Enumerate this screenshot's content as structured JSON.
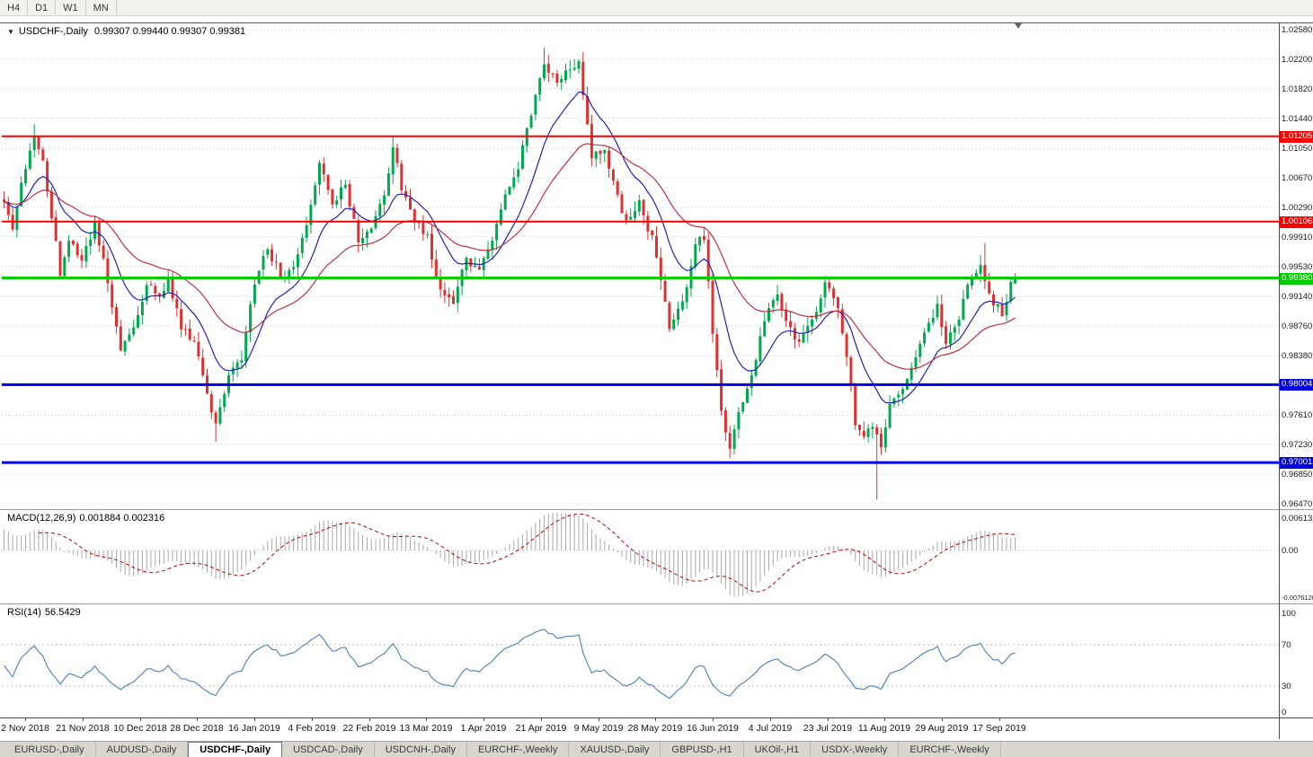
{
  "toolbar": {
    "buttons": [
      "H4",
      "D1",
      "W1",
      "MN"
    ]
  },
  "chart": {
    "title_symbol": "USDCHF-,Daily",
    "title_ohlc": "0.99307 0.99440 0.99307 0.99381"
  },
  "price_axis": {
    "labels": [
      "1.02580",
      "1.02200",
      "1.01820",
      "1.01440",
      "1.01050",
      "1.00670",
      "1.00290",
      "0.99910",
      "0.99530",
      "0.99140",
      "0.98760",
      "0.98380",
      "0.97610",
      "0.97230",
      "0.96850",
      "0.96470"
    ],
    "badges": [
      {
        "text": "1.01205",
        "value": 1.01205,
        "color": "#FF0000"
      },
      {
        "text": "1.00106",
        "value": 1.00106,
        "color": "#FF0000"
      },
      {
        "text": "0.99380",
        "value": 0.9938,
        "color": "#00CC00"
      },
      {
        "text": "0.98004",
        "value": 0.98004,
        "color": "#0000E0"
      },
      {
        "text": "0.97001",
        "value": 0.97001,
        "color": "#0000E0"
      }
    ]
  },
  "macd": {
    "label": "MACD(12,26,9)",
    "values": "0.001884 0.002316",
    "axis_top": "0.00613",
    "axis_zero": "0.00",
    "axis_bottom": "-0.0076128"
  },
  "rsi": {
    "label": "RSI(14)",
    "value": "56.5429",
    "axis": [
      "100",
      "70",
      "30",
      "0"
    ],
    "level_lines": [
      70,
      30
    ]
  },
  "dates": [
    "2 Nov 2018",
    "21 Nov 2018",
    "10 Dec 2018",
    "28 Dec 2018",
    "16 Jan 2019",
    "4 Feb 2019",
    "22 Feb 2019",
    "13 Mar 2019",
    "1 Apr 2019",
    "21 Apr 2019",
    "9 May 2019",
    "28 May 2019",
    "16 Jun 2019",
    "4 Jul 2019",
    "23 Jul 2019",
    "11 Aug 2019",
    "29 Aug 2019",
    "17 Sep 2019"
  ],
  "tabs": [
    {
      "label": "EURUSD-,Daily",
      "active": false
    },
    {
      "label": "AUDUSD-,Daily",
      "active": false
    },
    {
      "label": "USDCHF-,Daily",
      "active": true
    },
    {
      "label": "USDCAD-,Daily",
      "active": false
    },
    {
      "label": "USDCNH-,Daily",
      "active": false
    },
    {
      "label": "EURCHF-,Weekly",
      "active": false
    },
    {
      "label": "XAUUSD-,Daily",
      "active": false
    },
    {
      "label": "GBPUSD-,H1",
      "active": false
    },
    {
      "label": "UKOil-,H1",
      "active": false
    },
    {
      "label": "USDX-,Weekly",
      "active": false
    },
    {
      "label": "EURCHF-,Weekly",
      "active": false
    }
  ],
  "chart_data": {
    "type": "candlestick",
    "symbol": "USDCHF",
    "timeframe": "Daily",
    "last_candle": {
      "open": 0.99307,
      "high": 0.9944,
      "low": 0.99307,
      "close": 0.99381
    },
    "levels": [
      {
        "value": 1.01205,
        "color": "#FF0000",
        "width": 2
      },
      {
        "value": 1.00106,
        "color": "#FF0000",
        "width": 2
      },
      {
        "value": 0.9938,
        "color": "#00CC00",
        "width": 3
      },
      {
        "value": 0.98004,
        "color": "#0000E0",
        "width": 3
      },
      {
        "value": 0.97001,
        "color": "#0000E0",
        "width": 3
      }
    ],
    "num_candles": 235,
    "seed": 1337,
    "noise": 0.0012,
    "price_axis_range": {
      "top": 1.02661,
      "bottom": 0.964
    },
    "price_path": [
      [
        0,
        1.004
      ],
      [
        2,
        1.0
      ],
      [
        4,
        1.006
      ],
      [
        7,
        1.0125
      ],
      [
        9,
        1.009
      ],
      [
        13,
        0.9945
      ],
      [
        15,
        0.999
      ],
      [
        18,
        0.996
      ],
      [
        21,
        1.0005
      ],
      [
        24,
        0.9935
      ],
      [
        27,
        0.9845
      ],
      [
        30,
        0.9872
      ],
      [
        33,
        0.993
      ],
      [
        36,
        0.9912
      ],
      [
        38,
        0.9935
      ],
      [
        41,
        0.9875
      ],
      [
        44,
        0.9858
      ],
      [
        46,
        0.9812
      ],
      [
        49,
        0.9745
      ],
      [
        52,
        0.9812
      ],
      [
        55,
        0.9832
      ],
      [
        58,
        0.9933
      ],
      [
        61,
        0.9976
      ],
      [
        64,
        0.994
      ],
      [
        67,
        0.9956
      ],
      [
        70,
        1.001
      ],
      [
        73,
        1.0086
      ],
      [
        76,
        1.0036
      ],
      [
        79,
        1.0058
      ],
      [
        82,
        0.9986
      ],
      [
        85,
        1.0
      ],
      [
        88,
        1.0046
      ],
      [
        90,
        1.0108
      ],
      [
        92,
        1.0054
      ],
      [
        95,
        1.001
      ],
      [
        98,
        0.999
      ],
      [
        101,
        0.9922
      ],
      [
        104,
        0.991
      ],
      [
        107,
        0.9962
      ],
      [
        110,
        0.9952
      ],
      [
        113,
        0.9984
      ],
      [
        116,
        1.004
      ],
      [
        119,
        1.008
      ],
      [
        122,
        1.015
      ],
      [
        125,
        1.0215
      ],
      [
        128,
        1.019
      ],
      [
        131,
        1.0206
      ],
      [
        133,
        1.0213
      ],
      [
        136,
        1.0092
      ],
      [
        139,
        1.0104
      ],
      [
        141,
        1.0058
      ],
      [
        144,
        1.0012
      ],
      [
        147,
        1.0034
      ],
      [
        150,
        0.9988
      ],
      [
        152,
        0.9934
      ],
      [
        154,
        0.9876
      ],
      [
        157,
        0.9906
      ],
      [
        160,
        0.9984
      ],
      [
        162,
        0.9988
      ],
      [
        164,
        0.987
      ],
      [
        166,
        0.9762
      ],
      [
        168,
        0.9716
      ],
      [
        170,
        0.9762
      ],
      [
        173,
        0.981
      ],
      [
        176,
        0.9888
      ],
      [
        179,
        0.992
      ],
      [
        181,
        0.988
      ],
      [
        184,
        0.9852
      ],
      [
        187,
        0.988
      ],
      [
        190,
        0.993
      ],
      [
        193,
        0.9904
      ],
      [
        195,
        0.984
      ],
      [
        197,
        0.9752
      ],
      [
        199,
        0.9732
      ],
      [
        201,
        0.9746
      ],
      [
        203,
        0.9722
      ],
      [
        205,
        0.977
      ],
      [
        208,
        0.9792
      ],
      [
        211,
        0.9836
      ],
      [
        214,
        0.9882
      ],
      [
        216,
        0.99
      ],
      [
        218,
        0.9856
      ],
      [
        220,
        0.987
      ],
      [
        223,
        0.993
      ],
      [
        226,
        0.995
      ],
      [
        229,
        0.9906
      ],
      [
        231,
        0.9892
      ],
      [
        233,
        0.9928
      ],
      [
        234,
        0.99381
      ]
    ],
    "wick_events": [
      {
        "i": 7,
        "high": 1.0136
      },
      {
        "i": 49,
        "low": 0.9727
      },
      {
        "i": 90,
        "high": 1.0122
      },
      {
        "i": 125,
        "high": 1.0235
      },
      {
        "i": 202,
        "low": 0.9652
      },
      {
        "i": 227,
        "high": 0.9983
      }
    ],
    "ma_periods": {
      "fast": 13,
      "slow": 34
    },
    "colors": {
      "bull": "#00A84E",
      "bear": "#E03030",
      "ma_fast": "#2020C0",
      "ma_slow": "#C03040",
      "grid": "#C8C8C8",
      "macd_hist": "#A8A8A8",
      "macd_signal": "#C00000",
      "rsi": "#4A7EBD",
      "level_dotted": "#B8B8B8"
    }
  }
}
